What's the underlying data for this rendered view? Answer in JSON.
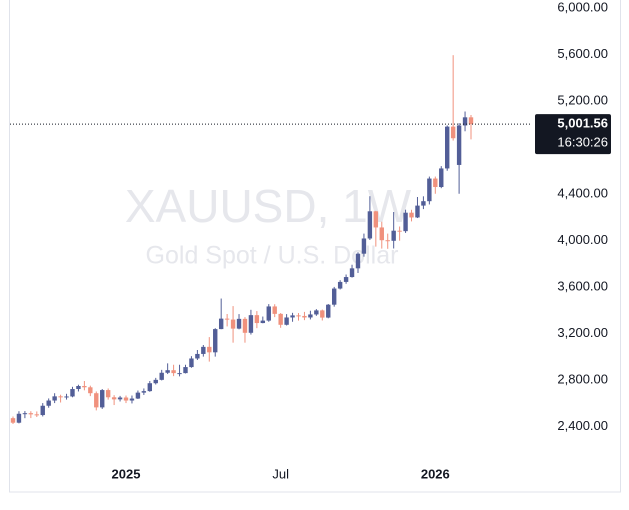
{
  "chart_data": {
    "type": "candlestick",
    "watermark": "XAUUSD, 1W",
    "description": "Gold Spot / U.S. Dollar",
    "categories": [
      null,
      null,
      null,
      null,
      null,
      null,
      null,
      null,
      null,
      null,
      null,
      null,
      null,
      null,
      null,
      null,
      null,
      null,
      null,
      "2025",
      null,
      null,
      null,
      null,
      null,
      null,
      null,
      null,
      null,
      null,
      null,
      null,
      null,
      null,
      null,
      null,
      null,
      null,
      null,
      null,
      null,
      null,
      null,
      null,
      null,
      "Jul",
      null,
      null,
      null,
      null,
      null,
      null,
      null,
      null,
      null,
      null,
      null,
      null,
      null,
      null,
      null,
      null,
      null,
      null,
      null,
      null,
      null,
      null,
      null,
      null,
      null,
      "2026",
      null,
      null,
      null,
      null,
      null,
      null
    ],
    "open": [
      2470,
      2431,
      2508,
      2513,
      2503,
      2497,
      2577,
      2622,
      2658,
      2653,
      2657,
      2721,
      2747,
      2736,
      2685,
      2563,
      2712,
      2650,
      2632,
      2648,
      2622,
      2639,
      2690,
      2703,
      2771,
      2800,
      2861,
      2883,
      2858,
      2858,
      2910,
      2984,
      3023,
      3084,
      3037,
      3237,
      3327,
      3319,
      3241,
      3325,
      3205,
      3357,
      3289,
      3310,
      3432,
      3368,
      3274,
      3337,
      3355,
      3350,
      3337,
      3363,
      3398,
      3336,
      3447,
      3586,
      3643,
      3685,
      3760,
      3886,
      4017,
      4251,
      4112,
      4002,
      3997,
      4084,
      4080,
      4239,
      4198,
      4300,
      4338,
      4533,
      4460,
      4620,
      4980,
      4650,
      4990,
      5060
    ],
    "high": [
      2485,
      2530,
      2531,
      2530,
      2528,
      2600,
      2640,
      2685,
      2672,
      2680,
      2740,
      2758,
      2790,
      2750,
      2700,
      2721,
      2726,
      2668,
      2662,
      2665,
      2665,
      2708,
      2726,
      2790,
      2817,
      2886,
      2942,
      2930,
      2930,
      2930,
      3004,
      3057,
      3100,
      3168,
      3245,
      3500,
      3367,
      3435,
      3366,
      3340,
      3403,
      3392,
      3345,
      3452,
      3451,
      3375,
      3366,
      3377,
      3375,
      3385,
      3395,
      3409,
      3405,
      3453,
      3600,
      3658,
      3707,
      3791,
      3898,
      4059,
      4381,
      4255,
      4161,
      4059,
      4245,
      4120,
      4265,
      4264,
      4374,
      4380,
      4550,
      4550,
      4640,
      4990,
      5595,
      5010,
      5110,
      5080
    ],
    "low": [
      2420,
      2425,
      2470,
      2471,
      2480,
      2485,
      2560,
      2600,
      2605,
      2630,
      2650,
      2700,
      2710,
      2660,
      2537,
      2550,
      2630,
      2583,
      2614,
      2600,
      2597,
      2635,
      2670,
      2697,
      2760,
      2795,
      2850,
      2832,
      2830,
      2855,
      2904,
      2971,
      3000,
      2957,
      3000,
      3236,
      3260,
      3120,
      3235,
      3120,
      3190,
      3245,
      3287,
      3300,
      3340,
      3248,
      3268,
      3300,
      3310,
      3314,
      3320,
      3351,
      3311,
      3330,
      3430,
      3578,
      3627,
      3680,
      3720,
      3860,
      4004,
      3947,
      3930,
      3928,
      3931,
      3998,
      4065,
      4164,
      4193,
      4270,
      4310,
      4402,
      4450,
      4600,
      4860,
      4402,
      4940,
      4870
    ],
    "close": [
      2431,
      2508,
      2513,
      2503,
      2497,
      2577,
      2622,
      2658,
      2653,
      2657,
      2721,
      2747,
      2736,
      2685,
      2563,
      2712,
      2650,
      2632,
      2648,
      2622,
      2639,
      2690,
      2703,
      2771,
      2800,
      2861,
      2883,
      2858,
      2858,
      2910,
      2984,
      3023,
      3084,
      3037,
      3237,
      3327,
      3319,
      3241,
      3325,
      3205,
      3357,
      3289,
      3310,
      3432,
      3368,
      3274,
      3337,
      3355,
      3350,
      3337,
      3363,
      3398,
      3336,
      3447,
      3586,
      3643,
      3685,
      3760,
      3886,
      4017,
      4251,
      4112,
      4002,
      3997,
      4084,
      4080,
      4239,
      4198,
      4300,
      4338,
      4533,
      4460,
      4620,
      4980,
      4880,
      4990,
      5060,
      5001.56
    ],
    "up_color": "#525e97",
    "down_color": "#f0917d",
    "ylim": [
      2110,
      6070
    ],
    "yticks": [
      {
        "value": 2400,
        "label": "2,400.00"
      },
      {
        "value": 2800,
        "label": "2,800.00"
      },
      {
        "value": 3200,
        "label": "3,200.00"
      },
      {
        "value": 3600,
        "label": "3,600.00"
      },
      {
        "value": 4000,
        "label": "4,000.00"
      },
      {
        "value": 4400,
        "label": "4,400.00"
      },
      {
        "value": 5200,
        "label": "5,200.00"
      },
      {
        "value": 5600,
        "label": "5,600.00"
      },
      {
        "value": 6000,
        "label": "6,000.00"
      }
    ],
    "last_price": {
      "value": 5001.56,
      "label": "5,001.56"
    },
    "countdown": "16:30:26"
  }
}
